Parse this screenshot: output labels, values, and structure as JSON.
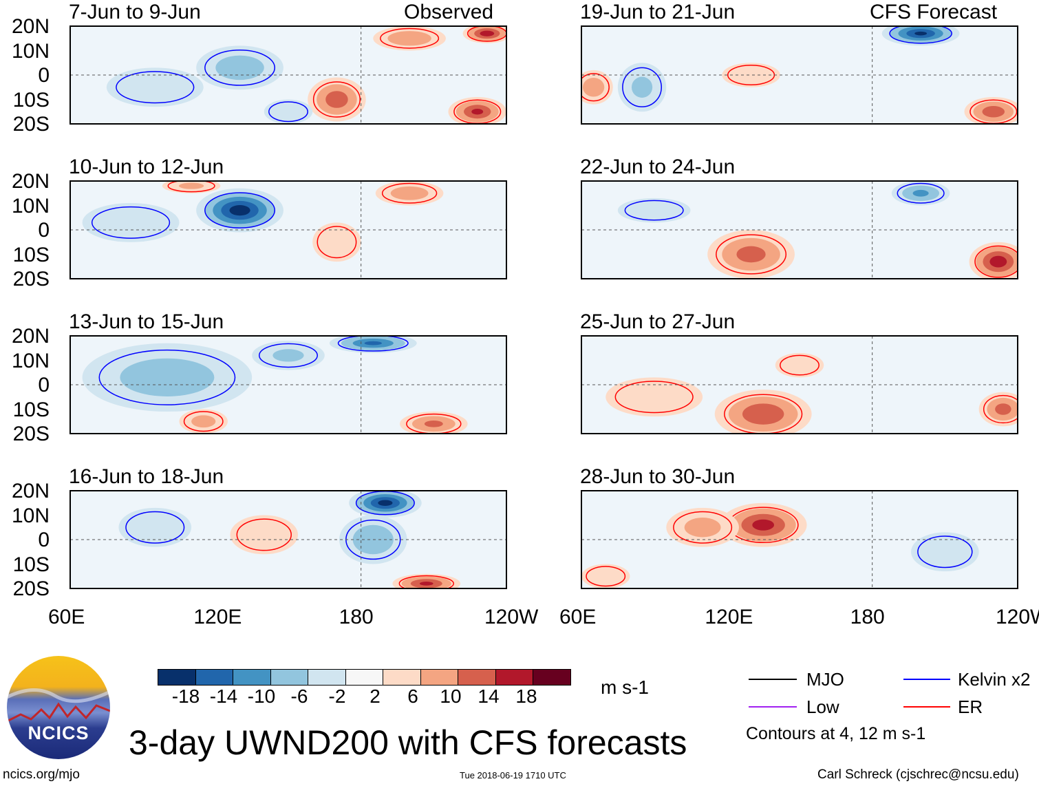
{
  "header": {
    "observed": "Observed",
    "forecast": "CFS Forecast"
  },
  "lat_labels": [
    "20N",
    "10N",
    "0",
    "10S",
    "20S"
  ],
  "lon_labels": [
    "60E",
    "120E",
    "180",
    "120W"
  ],
  "panels": [
    {
      "title": "7-Jun to 9-Jun",
      "blobs": [
        [
          130,
          3,
          18,
          9,
          -9
        ],
        [
          95,
          -5,
          20,
          8,
          -4
        ],
        [
          170,
          -10,
          12,
          9,
          13
        ],
        [
          228,
          -15,
          12,
          6,
          15
        ],
        [
          200,
          15,
          15,
          5,
          10
        ],
        [
          232,
          17,
          10,
          4,
          17
        ],
        [
          150,
          -15,
          10,
          5,
          -6
        ]
      ]
    },
    {
      "title": "10-Jun to 12-Jun",
      "blobs": [
        [
          130,
          8,
          18,
          9,
          -21
        ],
        [
          85,
          3,
          20,
          8,
          -5
        ],
        [
          200,
          15,
          14,
          5,
          9
        ],
        [
          170,
          -5,
          10,
          8,
          6
        ],
        [
          110,
          18,
          12,
          3,
          7
        ]
      ]
    },
    {
      "title": "13-Jun to 15-Jun",
      "blobs": [
        [
          100,
          3,
          35,
          14,
          -9
        ],
        [
          185,
          17,
          18,
          4,
          -15
        ],
        [
          210,
          -16,
          14,
          5,
          11
        ],
        [
          115,
          -15,
          10,
          5,
          8
        ],
        [
          150,
          12,
          15,
          6,
          -7
        ]
      ]
    },
    {
      "title": "16-Jun to 18-Jun",
      "blobs": [
        [
          190,
          15,
          15,
          6,
          -20
        ],
        [
          185,
          0,
          14,
          10,
          -10
        ],
        [
          207,
          -18,
          14,
          4,
          15
        ],
        [
          140,
          2,
          14,
          8,
          5
        ],
        [
          95,
          5,
          15,
          8,
          -4
        ]
      ]
    },
    {
      "title": "19-Jun to 21-Jun",
      "blobs": [
        [
          200,
          17,
          16,
          5,
          -19
        ],
        [
          65,
          -5,
          8,
          7,
          9
        ],
        [
          230,
          -15,
          12,
          6,
          13
        ],
        [
          85,
          -5,
          10,
          10,
          -7
        ],
        [
          130,
          0,
          12,
          5,
          6
        ]
      ]
    },
    {
      "title": "22-Jun to 24-Jun",
      "blobs": [
        [
          130,
          -10,
          18,
          10,
          12
        ],
        [
          232,
          -13,
          12,
          8,
          17
        ],
        [
          200,
          15,
          12,
          5,
          -11
        ],
        [
          90,
          8,
          15,
          5,
          -4
        ]
      ]
    },
    {
      "title": "25-Jun to 27-Jun",
      "blobs": [
        [
          135,
          -12,
          20,
          10,
          14
        ],
        [
          234,
          -10,
          10,
          7,
          12
        ],
        [
          150,
          8,
          10,
          5,
          6
        ],
        [
          90,
          -5,
          20,
          8,
          3
        ]
      ]
    },
    {
      "title": "28-Jun to 30-Jun",
      "blobs": [
        [
          135,
          6,
          18,
          9,
          16
        ],
        [
          110,
          5,
          15,
          8,
          8
        ],
        [
          70,
          -15,
          10,
          5,
          6
        ],
        [
          210,
          -5,
          14,
          8,
          -5
        ]
      ]
    }
  ],
  "colorbar": {
    "colors": [
      "#08306b",
      "#2166ac",
      "#4393c3",
      "#92c5de",
      "#d1e5f0",
      "#f7f7f7",
      "#fddbc7",
      "#f4a582",
      "#d6604d",
      "#b2182b",
      "#67001f"
    ],
    "labels": [
      "-18",
      "-14",
      "-10",
      "-6",
      "-2",
      "2",
      "6",
      "10",
      "14",
      "18"
    ],
    "units": "m s-1"
  },
  "legend": {
    "mjo": "MJO",
    "kelvin": "Kelvin x2",
    "low": "Low",
    "er": "ER",
    "note": "Contours at 4, 12 m s-1",
    "colors": {
      "mjo": "#000000",
      "kelvin": "#0000ff",
      "low": "#a020f0",
      "er": "#ff0000"
    }
  },
  "title": "3-day UWND200 with CFS forecasts",
  "logo": "NCICS",
  "footer": {
    "url": "ncics.org/mjo",
    "timestamp": "Tue 2018-06-19 1710 UTC",
    "author": "Carl Schreck (cjschrec@ncsu.edu)"
  }
}
